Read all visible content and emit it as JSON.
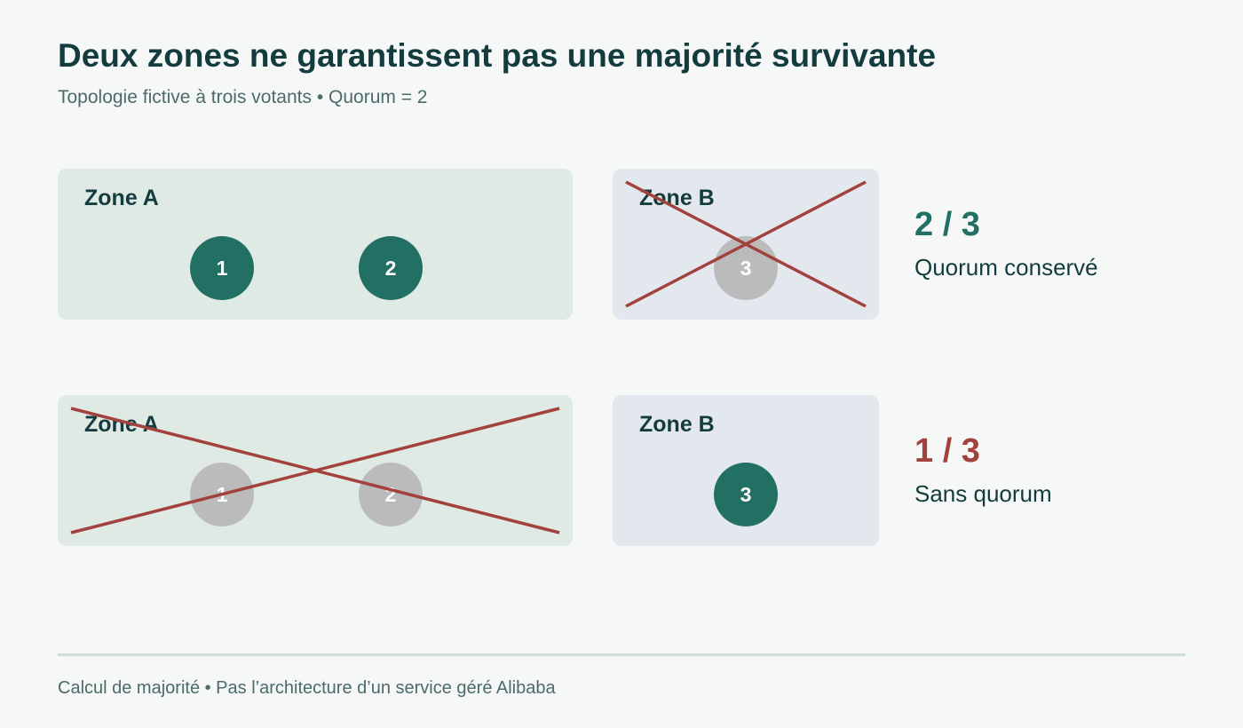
{
  "header": {
    "title": "Deux zones ne garantissent pas une majorité survivante",
    "subtitle": "Topologie fictive à trois votants • Quorum = 2"
  },
  "scenarios": [
    {
      "zones": [
        {
          "label": "Zone A",
          "failed": false,
          "nodes": [
            {
              "label": "1",
              "up": true
            },
            {
              "label": "2",
              "up": true
            }
          ]
        },
        {
          "label": "Zone B",
          "failed": true,
          "nodes": [
            {
              "label": "3",
              "up": false
            }
          ]
        }
      ],
      "result": {
        "count": "2 / 3",
        "status": "Quorum conservé",
        "color": "#226f63"
      }
    },
    {
      "zones": [
        {
          "label": "Zone A",
          "failed": true,
          "nodes": [
            {
              "label": "1",
              "up": false
            },
            {
              "label": "2",
              "up": false
            }
          ]
        },
        {
          "label": "Zone B",
          "failed": false,
          "nodes": [
            {
              "label": "3",
              "up": true
            }
          ]
        }
      ],
      "result": {
        "count": "1 / 3",
        "status": "Sans quorum",
        "color": "#a3423c"
      }
    }
  ],
  "footer": {
    "text": "Calcul de majorité • Pas l’architecture d’un service géré Alibaba"
  },
  "colors": {
    "node_up": "#226f63",
    "node_down": "#bbbbbb",
    "failure_cross": "#a3423c",
    "zone_a_bg": "#e0eae5",
    "zone_b_bg": "#e2e8ee"
  }
}
